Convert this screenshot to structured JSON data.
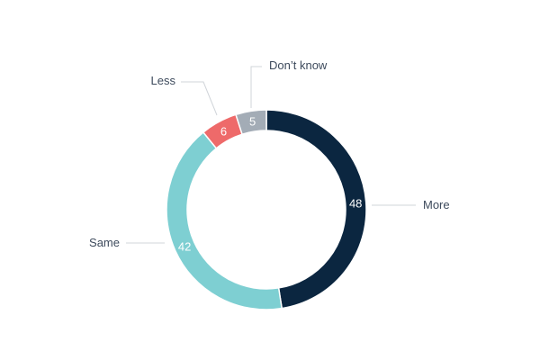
{
  "chart_data": {
    "type": "pie",
    "donut": true,
    "title": "",
    "categories": [
      "More",
      "Same",
      "Less",
      "Don’t know"
    ],
    "values": [
      48,
      42,
      6,
      5
    ],
    "colors": [
      "#0b2640",
      "#7ecfd2",
      "#ee6a6a",
      "#a3acb6"
    ],
    "legend": "labels-outside"
  }
}
